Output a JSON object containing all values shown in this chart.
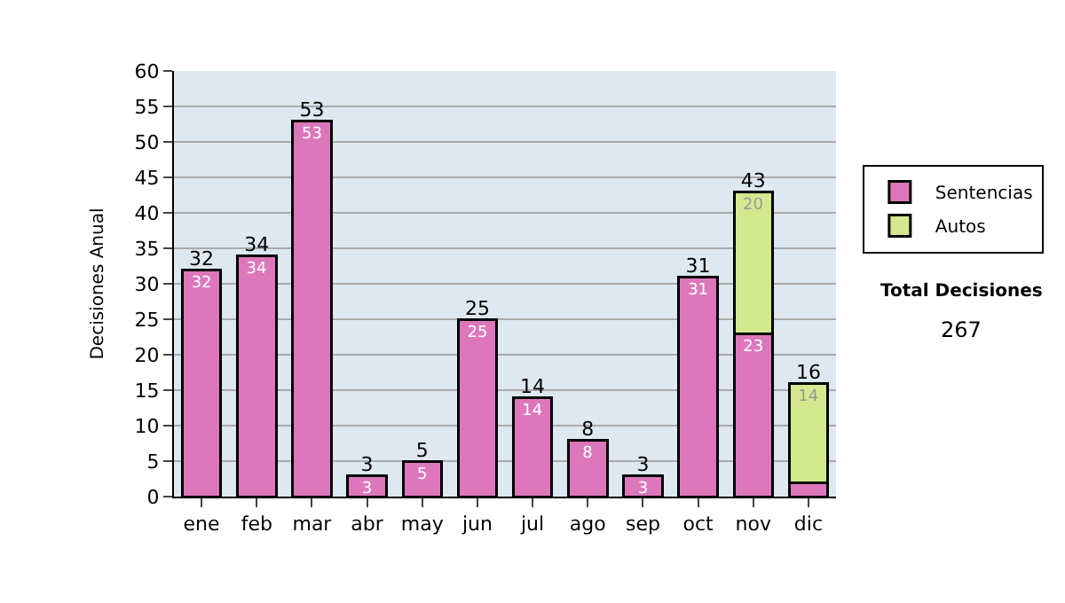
{
  "chart_data": {
    "type": "bar",
    "stacked": true,
    "ylabel": "Decisiones Anual",
    "categories": [
      "ene",
      "feb",
      "mar",
      "abr",
      "may",
      "jun",
      "jul",
      "ago",
      "sep",
      "oct",
      "nov",
      "dic"
    ],
    "series": [
      {
        "name": "Sentencias",
        "color": "#dd77bb",
        "values": [
          32,
          34,
          53,
          3,
          5,
          25,
          14,
          8,
          3,
          31,
          23,
          2
        ],
        "value_labels": [
          "32",
          "34",
          "53",
          "3",
          "5",
          "25",
          "14",
          "8",
          "3",
          "31",
          "23",
          null
        ]
      },
      {
        "name": "Autos",
        "color": "#d4e890",
        "values": [
          null,
          null,
          null,
          null,
          null,
          null,
          null,
          null,
          null,
          null,
          20,
          14
        ],
        "value_labels": [
          null,
          null,
          null,
          null,
          null,
          null,
          null,
          null,
          null,
          null,
          "20",
          "14"
        ]
      }
    ],
    "totals": [
      "32",
      "34",
      "53",
      "3",
      "5",
      "25",
      "14",
      "8",
      "3",
      "31",
      "43",
      "16"
    ],
    "ylim": [
      0,
      60
    ],
    "yticks": [
      0,
      5,
      10,
      15,
      20,
      25,
      30,
      35,
      40,
      45,
      50,
      55,
      60
    ],
    "grid": "y",
    "legend": "right",
    "annotations": [
      "Total Decisiones",
      "267"
    ]
  }
}
